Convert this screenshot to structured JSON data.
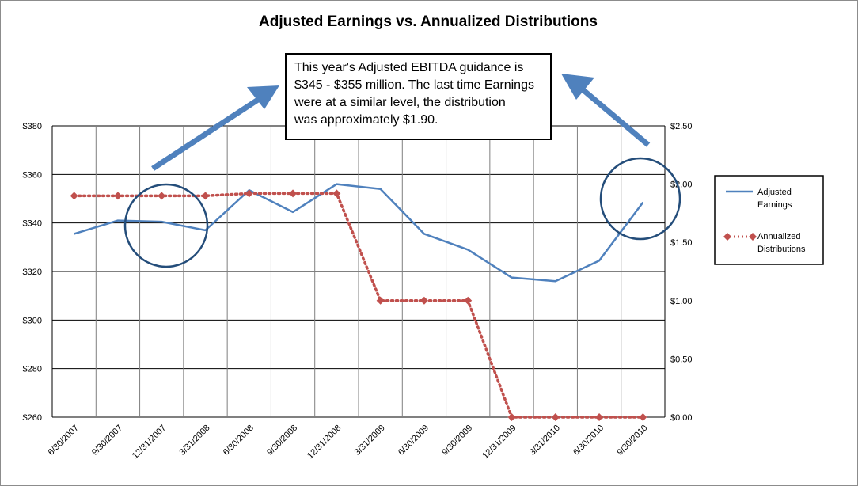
{
  "chart_data": {
    "type": "line",
    "title": "Adjusted Earnings vs. Annualized Distributions",
    "categories": [
      "6/30/2007",
      "9/30/2007",
      "12/31/2007",
      "3/31/2008",
      "6/30/2008",
      "9/30/2008",
      "12/31/2008",
      "3/31/2009",
      "6/30/2009",
      "9/30/2009",
      "12/31/2009",
      "3/31/2010",
      "6/30/2010",
      "9/30/2010"
    ],
    "y_left": {
      "range": [
        260,
        380
      ],
      "ticks": [
        260,
        280,
        300,
        320,
        340,
        360,
        380
      ],
      "tick_labels": [
        "$260",
        "$280",
        "$300",
        "$320",
        "$340",
        "$360",
        "$380"
      ]
    },
    "y_right": {
      "range": [
        0,
        2.5
      ],
      "ticks": [
        0,
        0.5,
        1.0,
        1.5,
        2.0,
        2.5
      ],
      "tick_labels": [
        "$0.00",
        "$0.50",
        "$1.00",
        "$1.50",
        "$2.00",
        "$2.50"
      ]
    },
    "series": [
      {
        "name": "Adjusted Earnings",
        "axis": "left",
        "color": "#4f81bd",
        "style": "solid",
        "values": [
          335.5,
          341,
          340.5,
          337,
          353.5,
          344.5,
          356,
          354,
          335.5,
          329,
          317.5,
          316,
          324.5,
          348.5
        ]
      },
      {
        "name": "Annualized Distributions",
        "axis": "right",
        "color": "#c0504d",
        "style": "dotted",
        "marker": "diamond",
        "values": [
          1.9,
          1.9,
          1.9,
          1.9,
          1.92,
          1.92,
          1.92,
          1.0,
          1.0,
          1.0,
          0.0,
          0.0,
          0.0,
          0.0
        ]
      }
    ],
    "grid": "horizontal and vertical",
    "legend": {
      "placement": "right",
      "items": [
        {
          "line1": "Adjusted",
          "line2": "Earnings"
        },
        {
          "line1": "Annualized",
          "line2": "Distributions"
        }
      ]
    },
    "annotation": {
      "lines": [
        "This year's Adjusted EBITDA guidance is",
        "$345 - $355 million.  The last time Earnings",
        "were at a similar level, the distribution",
        "was approximately $1.90."
      ]
    },
    "shape_colors": {
      "arrow": "#4f81bd",
      "circle": "#244d7a",
      "grid": "#000000",
      "legend_border": "#000000"
    }
  }
}
